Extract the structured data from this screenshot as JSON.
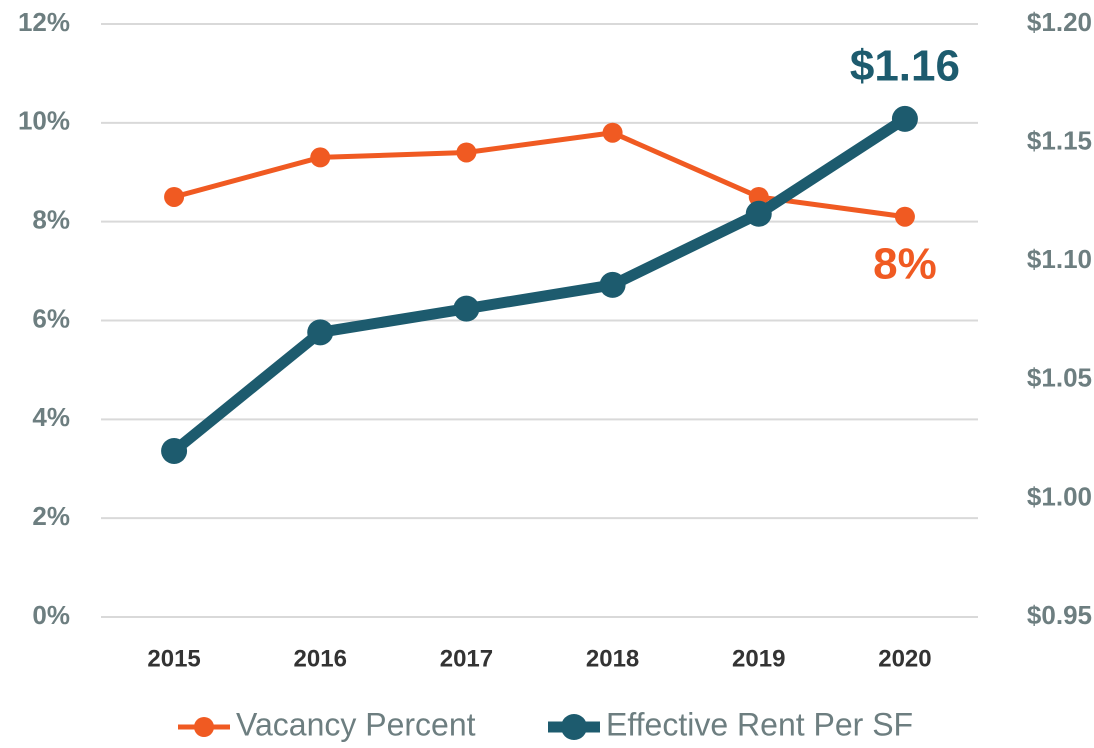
{
  "chart_data": {
    "type": "line",
    "categories": [
      "2015",
      "2016",
      "2017",
      "2018",
      "2019",
      "2020"
    ],
    "series": [
      {
        "name": "Vacancy Percent",
        "color": "#f05a22",
        "values": [
          8.5,
          9.3,
          9.4,
          9.8,
          8.5,
          8.1
        ],
        "value_labels": [
          null,
          null,
          null,
          null,
          null,
          "8%"
        ]
      },
      {
        "name": "Effective Rent Per SF",
        "color": "#1d5b6e",
        "axis": "y2",
        "values": [
          1.02,
          1.07,
          1.08,
          1.09,
          1.12,
          1.16
        ],
        "value_labels": [
          null,
          null,
          null,
          null,
          null,
          "$1.16"
        ]
      }
    ],
    "ylim": [
      0,
      12
    ],
    "yticks": [
      {
        "value": 0,
        "label": "0%"
      },
      {
        "value": 2,
        "label": "2%"
      },
      {
        "value": 4,
        "label": "4%"
      },
      {
        "value": 6,
        "label": "6%"
      },
      {
        "value": 8,
        "label": "8%"
      },
      {
        "value": 10,
        "label": "10%"
      },
      {
        "value": 12,
        "label": "12%"
      }
    ],
    "y2lim": [
      0.95,
      1.2
    ],
    "y2ticks": [
      {
        "value": 0.95,
        "label": "$0.95"
      },
      {
        "value": 1.0,
        "label": "$1.00"
      },
      {
        "value": 1.05,
        "label": "$1.05"
      },
      {
        "value": 1.1,
        "label": "$1.10"
      },
      {
        "value": 1.15,
        "label": "$1.15"
      },
      {
        "value": 1.2,
        "label": "$1.20"
      }
    ],
    "grid": true,
    "legend": "bottom"
  }
}
